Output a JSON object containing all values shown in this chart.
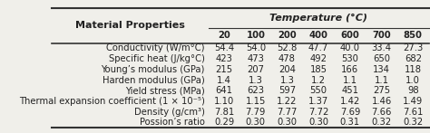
{
  "title_left": "Material Properties",
  "title_right": "Temperature (°C)",
  "col_headers": [
    "20",
    "100",
    "200",
    "400",
    "600",
    "700",
    "850"
  ],
  "rows": [
    [
      "Conductivity (W/m°C)",
      "54.4",
      "54.0",
      "52.8",
      "47.7",
      "40.0",
      "33.4",
      "27.3"
    ],
    [
      "Specific heat (J/kg°C)",
      "423",
      "473",
      "478",
      "492",
      "530",
      "650",
      "682"
    ],
    [
      "Young’s modulus (GPa)",
      "215",
      "207",
      "204",
      "185",
      "166",
      "134",
      "118"
    ],
    [
      "Harden modulus (GPa)",
      "1.4",
      "1.3",
      "1.3",
      "1.2",
      "1.1",
      "1.1",
      "1.0"
    ],
    [
      "Yield stress (MPa)",
      "641",
      "623",
      "597",
      "550",
      "451",
      "275",
      "98"
    ],
    [
      "Thermal expansion coefficient (1 × 10⁻⁵)",
      "1.10",
      "1.15",
      "1.22",
      "1.37",
      "1.42",
      "1.46",
      "1.49"
    ],
    [
      "Density (g/cm³)",
      "7.81",
      "7.79",
      "7.77",
      "7.72",
      "7.69",
      "7.66",
      "7.61"
    ],
    [
      "Possion’s ratio",
      "0.29",
      "0.30",
      "0.30",
      "0.30",
      "0.31",
      "0.32",
      "0.32"
    ]
  ],
  "bg_color": "#f0efea",
  "line_color": "#333333",
  "text_color": "#222222",
  "fontsize": 7.2,
  "header_fontsize": 8.0
}
